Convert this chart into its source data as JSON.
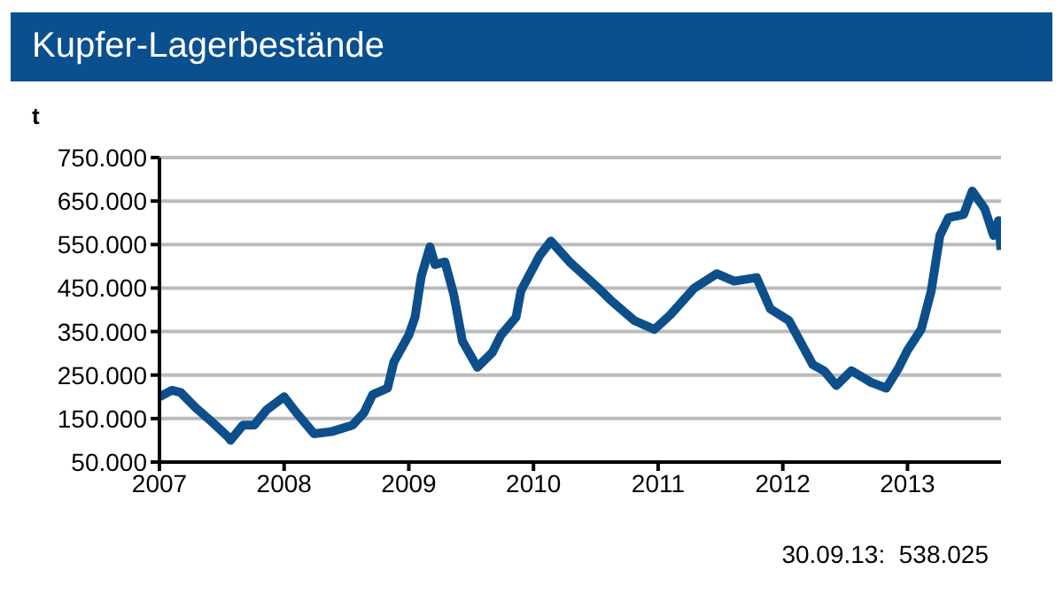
{
  "chart_data": {
    "type": "line",
    "title": "Kupfer-Lagerbestände",
    "ylabel": "t",
    "annotations": [
      "30.09.13:  538.025"
    ],
    "xlim": [
      2007,
      2013.75
    ],
    "xticks": [
      2007,
      2008,
      2009,
      2010,
      2011,
      2012,
      2013
    ],
    "ylim": [
      50000,
      750000
    ],
    "yticks": [
      {
        "value": 50000,
        "label": "50.000"
      },
      {
        "value": 150000,
        "label": "150.000"
      },
      {
        "value": 250000,
        "label": "250.000"
      },
      {
        "value": 350000,
        "label": "350.000"
      },
      {
        "value": 450000,
        "label": "450.000"
      },
      {
        "value": 550000,
        "label": "550.000"
      },
      {
        "value": 650000,
        "label": "650.000"
      },
      {
        "value": 750000,
        "label": "750.000"
      }
    ],
    "grid": "y",
    "legend": false,
    "marker": "none",
    "line_style": "solid",
    "series": [
      {
        "color": "#0d4f8b",
        "x": [
          2007,
          2007.1,
          2007.17,
          2007.29,
          2007.43,
          2007.55,
          2007.57,
          2007.67,
          2007.76,
          2007.86,
          2008,
          2008.1,
          2008.24,
          2008.38,
          2008.55,
          2008.64,
          2008.71,
          2008.83,
          2008.88,
          2009,
          2009.05,
          2009.1,
          2009.17,
          2009.21,
          2009.29,
          2009.36,
          2009.43,
          2009.55,
          2009.67,
          2009.74,
          2009.86,
          2009.9,
          2010.05,
          2010.14,
          2010.29,
          2010.52,
          2010.62,
          2010.81,
          2010.97,
          2011.1,
          2011.29,
          2011.47,
          2011.61,
          2011.79,
          2011.9,
          2012.05,
          2012.24,
          2012.33,
          2012.43,
          2012.55,
          2012.71,
          2012.83,
          2012.93,
          2013,
          2013.11,
          2013.19,
          2013.26,
          2013.33,
          2013.45,
          2013.52,
          2013.62,
          2013.69,
          2013.73,
          2013.75
        ],
        "values": [
          200000,
          215000,
          210000,
          175000,
          140000,
          108000,
          100000,
          135000,
          135000,
          170000,
          200000,
          163000,
          115000,
          120000,
          135000,
          163000,
          205000,
          220000,
          280000,
          342000,
          383000,
          477000,
          545000,
          504000,
          510000,
          436000,
          328000,
          268000,
          302000,
          342000,
          383000,
          444000,
          525000,
          558000,
          510000,
          450000,
          422000,
          375000,
          355000,
          389000,
          450000,
          483000,
          466000,
          474000,
          402000,
          375000,
          274000,
          260000,
          226000,
          260000,
          233000,
          220000,
          267000,
          307000,
          355000,
          443000,
          571000,
          612000,
          619000,
          673000,
          632000,
          571000,
          605000,
          538025
        ]
      }
    ]
  }
}
